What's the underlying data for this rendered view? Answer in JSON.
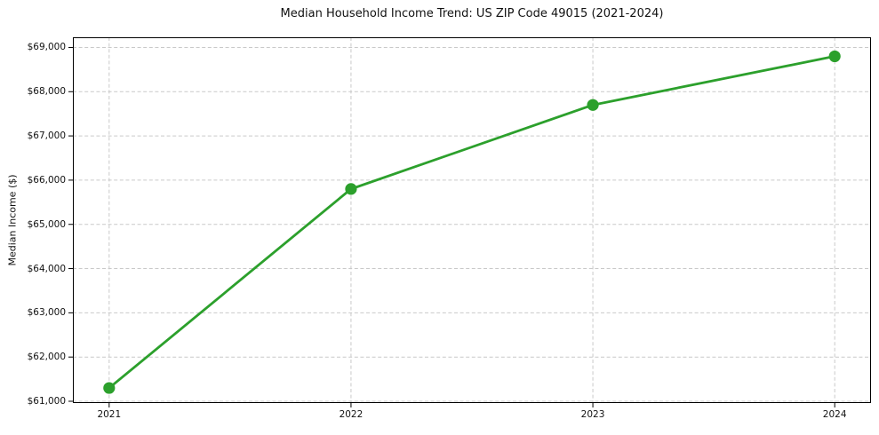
{
  "chart_data": {
    "type": "line",
    "title": "Median Household Income Trend: US ZIP Code 49015 (2021-2024)",
    "xlabel": "",
    "ylabel": "Median Income ($)",
    "x": [
      2021,
      2022,
      2023,
      2024
    ],
    "x_tick_labels": [
      "2021",
      "2022",
      "2023",
      "2024"
    ],
    "series": [
      {
        "name": "Median Household Income",
        "values": [
          61300,
          65800,
          67700,
          68800
        ]
      }
    ],
    "y_ticks": [
      61000,
      62000,
      63000,
      64000,
      65000,
      66000,
      67000,
      68000,
      69000
    ],
    "y_tick_labels": [
      "$61,000",
      "$62,000",
      "$63,000",
      "$64,000",
      "$65,000",
      "$66,000",
      "$67,000",
      "$68,000",
      "$69,000"
    ],
    "ylim": [
      60960,
      69230
    ],
    "xlim": [
      2020.85,
      2024.15
    ],
    "grid": true,
    "legend_position": "none",
    "line_color": "#2ca02c",
    "marker_color": "#2ca02c",
    "grid_color": "#c9c9c9",
    "spine_color": "#000000",
    "tick_color": "#000000"
  }
}
